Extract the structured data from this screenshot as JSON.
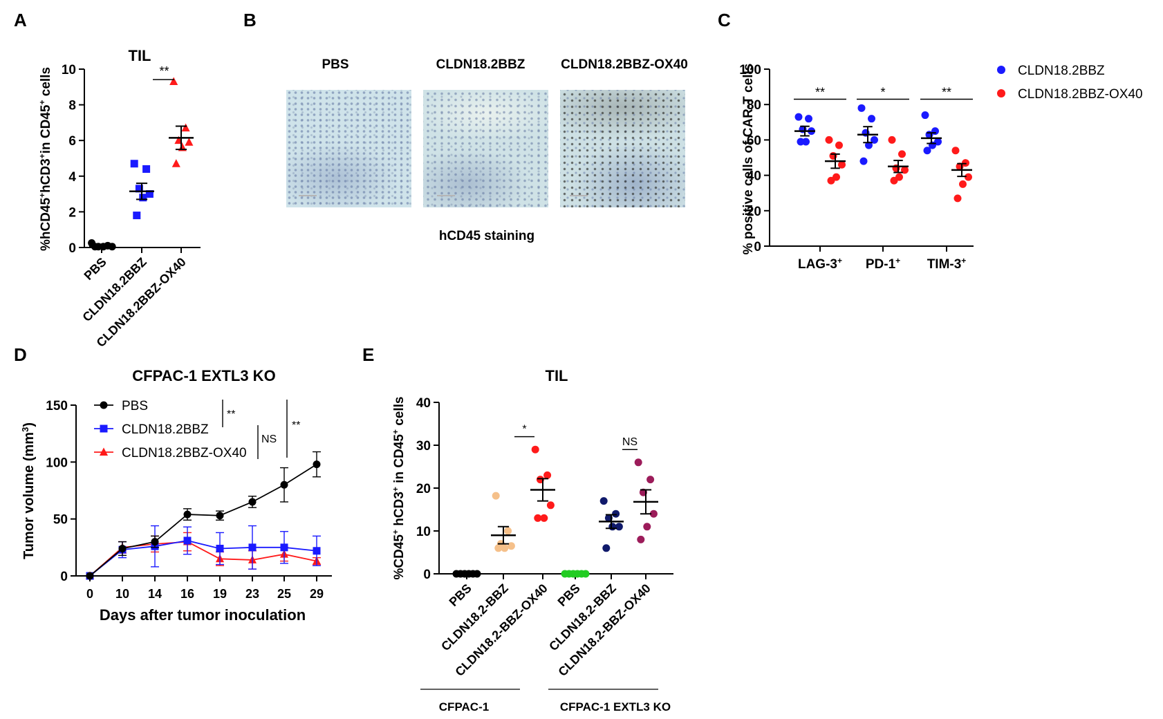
{
  "panels": {
    "a": "A",
    "b": "B",
    "c": "C",
    "d": "D",
    "e": "E"
  },
  "panel_b": {
    "columns": [
      "PBS",
      "CLDN18.2BBZ",
      "CLDN18.2BBZ-OX40"
    ],
    "caption": "hCD45 staining"
  },
  "superscripts": {
    "plus": "+",
    "three": "3"
  },
  "colors": {
    "blue": "#1a1aff",
    "red": "#ff1a1a",
    "black": "#000000",
    "light_orange": "#f5c08a",
    "green": "#22cc22",
    "navy": "#101a6b",
    "maroon": "#9c1c5a"
  },
  "chart_data": [
    {
      "id": "A",
      "type": "scatter",
      "title": "TIL",
      "ylabel_parts": [
        "%hCD45",
        "+",
        "hCD3",
        "+",
        "in CD45",
        "+",
        " cells"
      ],
      "categories": [
        "PBS",
        "CLDN18.2BBZ",
        "CLDN18.2BBZ-OX40"
      ],
      "ylim": [
        0,
        10
      ],
      "yticks": [
        0,
        2,
        4,
        6,
        8,
        10
      ],
      "groups": [
        {
          "name": "PBS",
          "marker": "circle",
          "color": "#000000",
          "points": [
            0.25,
            0.1,
            0.05,
            0.05,
            0.05,
            0.05
          ],
          "mean": 0.08,
          "sem": 0.04
        },
        {
          "name": "CLDN18.2BBZ",
          "marker": "square",
          "color": "#1a1aff",
          "points": [
            4.7,
            4.4,
            3.3,
            3.0,
            2.8,
            1.8
          ],
          "mean": 3.15,
          "sem": 0.45
        },
        {
          "name": "CLDN18.2BBZ-OX40",
          "marker": "triangle",
          "color": "#ff1a1a",
          "points": [
            9.3,
            6.7,
            6.0,
            5.9,
            5.6,
            4.7
          ],
          "mean": 6.15,
          "sem": 0.65
        }
      ],
      "annotations": [
        {
          "between": [
            1,
            2
          ],
          "label": "**"
        }
      ]
    },
    {
      "id": "C",
      "type": "scatter",
      "title": "",
      "ylabel": "% positive cells of CAR-T cells",
      "categories": [
        "LAG-3",
        "PD-1",
        "TIM-3"
      ],
      "category_superscript": "+",
      "ylim": [
        0,
        100
      ],
      "yticks": [
        0,
        20,
        40,
        60,
        80,
        100
      ],
      "legend": [
        {
          "name": "CLDN18.2BBZ",
          "color": "#1a1aff"
        },
        {
          "name": "CLDN18.2BBZ-OX40",
          "color": "#ff1a1a"
        }
      ],
      "series": [
        {
          "name": "CLDN18.2BBZ",
          "color": "#1a1aff",
          "groups": [
            {
              "points": [
                73,
                72,
                66,
                65,
                59,
                59
              ],
              "mean": 65,
              "sem": 2.7
            },
            {
              "points": [
                78,
                72,
                64,
                60,
                57,
                48
              ],
              "mean": 63,
              "sem": 4.5
            },
            {
              "points": [
                74,
                65,
                63,
                59,
                57,
                54
              ],
              "mean": 61,
              "sem": 3.0
            }
          ]
        },
        {
          "name": "CLDN18.2BBZ-OX40",
          "color": "#ff1a1a",
          "groups": [
            {
              "points": [
                60,
                57,
                51,
                46,
                39,
                37
              ],
              "mean": 48,
              "sem": 4.0
            },
            {
              "points": [
                60,
                52,
                44,
                43,
                39,
                37
              ],
              "mean": 45,
              "sem": 3.4
            },
            {
              "points": [
                54,
                47,
                45,
                39,
                35,
                27
              ],
              "mean": 43,
              "sem": 3.6
            }
          ]
        }
      ],
      "annotations": [
        {
          "category": 0,
          "label": "**"
        },
        {
          "category": 1,
          "label": "*"
        },
        {
          "category": 2,
          "label": "**"
        }
      ]
    },
    {
      "id": "D",
      "type": "line",
      "title": "CFPAC-1 EXTL3 KO",
      "xlabel": "Days after tumor inoculation",
      "ylabel_parts": [
        "Tumor volume (mm",
        "3",
        ")"
      ],
      "x": [
        0,
        10,
        14,
        16,
        19,
        23,
        25,
        29
      ],
      "ylim": [
        0,
        150
      ],
      "yticks": [
        0,
        50,
        100,
        150
      ],
      "series": [
        {
          "name": "PBS",
          "marker": "circle",
          "color": "#000000",
          "values": [
            0,
            24,
            30,
            54,
            53,
            65,
            80,
            98
          ],
          "errors": [
            0,
            6,
            5,
            5,
            4,
            5,
            15,
            11
          ]
        },
        {
          "name": "CLDN18.2BBZ",
          "marker": "square",
          "color": "#1a1aff",
          "values": [
            0,
            23,
            26,
            31,
            24,
            25,
            25,
            22
          ],
          "errors": [
            0,
            7,
            18,
            12,
            14,
            19,
            14,
            13
          ]
        },
        {
          "name": "CLDN18.2BBZ-OX40",
          "marker": "triangle",
          "color": "#ff1a1a",
          "values": [
            0,
            25,
            28,
            30,
            15,
            14,
            19,
            13
          ],
          "errors": [
            0,
            5,
            7,
            8,
            6,
            8,
            6,
            3
          ]
        }
      ],
      "annotations": [
        {
          "label": "**"
        },
        {
          "label": "NS"
        },
        {
          "label": "**"
        }
      ]
    },
    {
      "id": "E",
      "type": "scatter",
      "title": "TIL",
      "ylabel_parts": [
        "%CD45",
        "+",
        " hCD3",
        "+",
        " in CD45",
        "+",
        " cells"
      ],
      "categories": [
        "PBS",
        "CLDN18.2-BBZ",
        "CLDN18.2-BBZ-OX40",
        "PBS",
        "CLDN18.2-BBZ",
        "CLDN18.2-BBZ-OX40"
      ],
      "group_labels": [
        "CFPAC-1",
        "CFPAC-1 EXTL3 KO"
      ],
      "ylim": [
        0,
        40
      ],
      "yticks": [
        0,
        10,
        20,
        30,
        40
      ],
      "groups": [
        {
          "color": "#000000",
          "points": [
            0,
            0,
            0,
            0,
            0,
            0
          ],
          "mean": 0,
          "sem": 0
        },
        {
          "color": "#f5c08a",
          "points": [
            18.2,
            10,
            7,
            6.5,
            6,
            6
          ],
          "mean": 9,
          "sem": 2
        },
        {
          "color": "#ff1a1a",
          "points": [
            29,
            23,
            22,
            16,
            13,
            13
          ],
          "mean": 19.6,
          "sem": 2.6
        },
        {
          "color": "#22cc22",
          "points": [
            0,
            0,
            0,
            0,
            0,
            0
          ],
          "mean": 0,
          "sem": 0
        },
        {
          "color": "#101a6b",
          "points": [
            17,
            14,
            13,
            11,
            11,
            6
          ],
          "mean": 12.2,
          "sem": 1.6
        },
        {
          "color": "#9c1c5a",
          "points": [
            26,
            22,
            19,
            14,
            11,
            8
          ],
          "mean": 16.8,
          "sem": 2.8
        }
      ],
      "annotations": [
        {
          "between": [
            1,
            2
          ],
          "label": "*"
        },
        {
          "between": [
            4,
            5
          ],
          "label": "NS"
        }
      ]
    }
  ]
}
